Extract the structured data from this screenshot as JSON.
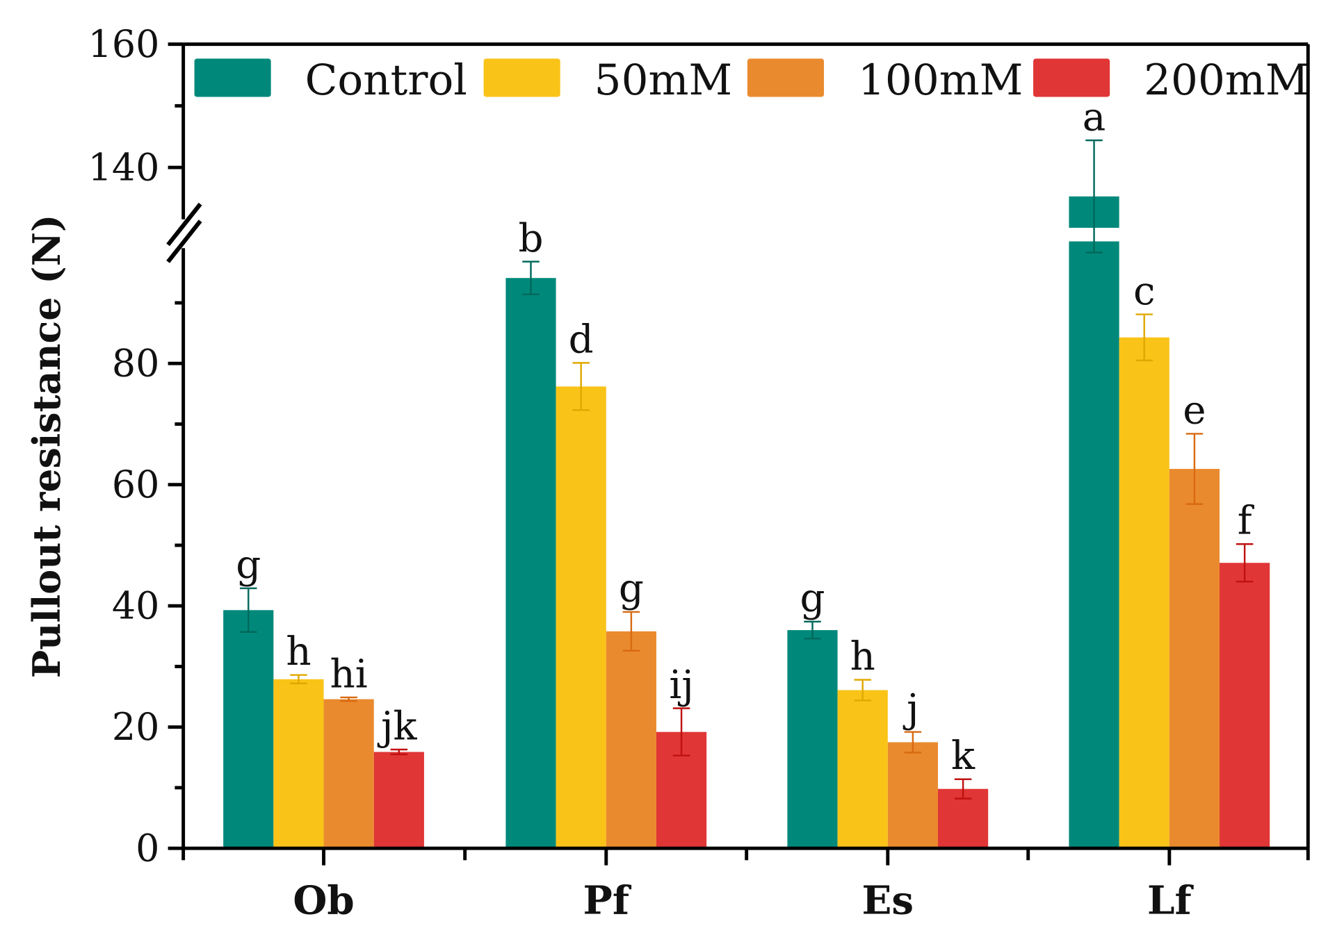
{
  "chart_data": {
    "type": "bar",
    "title": "",
    "xlabel": "",
    "ylabel": "Pullout resistance (N)",
    "categories": [
      "Ob",
      "Pf",
      "Es",
      "Lf"
    ],
    "ylim": [
      0,
      160
    ],
    "axis_break": [
      98,
      132
    ],
    "yticks": [
      0,
      20,
      40,
      60,
      80,
      140,
      160
    ],
    "legend_position": "top",
    "grid": false,
    "series": [
      {
        "name": "Control",
        "color": "#00897B",
        "err_color": "#00695C",
        "values": [
          39.3,
          94.1,
          36.0,
          135.3
        ],
        "errors": [
          3.6,
          2.7,
          1.4,
          9.1
        ],
        "labels": [
          "g",
          "b",
          "g",
          "a"
        ]
      },
      {
        "name": "50mM",
        "color": "#FAC318",
        "err_color": "#E0A800",
        "values": [
          27.9,
          76.2,
          26.1,
          84.3
        ],
        "errors": [
          0.7,
          3.9,
          1.7,
          3.8
        ],
        "labels": [
          "h",
          "d",
          "h",
          "c"
        ]
      },
      {
        "name": "100mM",
        "color": "#EA8A2E",
        "err_color": "#D86A10",
        "values": [
          24.6,
          35.8,
          17.5,
          62.6
        ],
        "errors": [
          0.3,
          3.2,
          1.7,
          5.8
        ],
        "labels": [
          "hi",
          "g",
          "j",
          "e"
        ]
      },
      {
        "name": "200mM",
        "color": "#E03636",
        "err_color": "#C01010",
        "values": [
          15.9,
          19.2,
          9.8,
          47.1
        ],
        "errors": [
          0.4,
          3.9,
          1.6,
          3.1
        ],
        "labels": [
          "jk",
          "ij",
          "k",
          "f"
        ]
      }
    ]
  }
}
